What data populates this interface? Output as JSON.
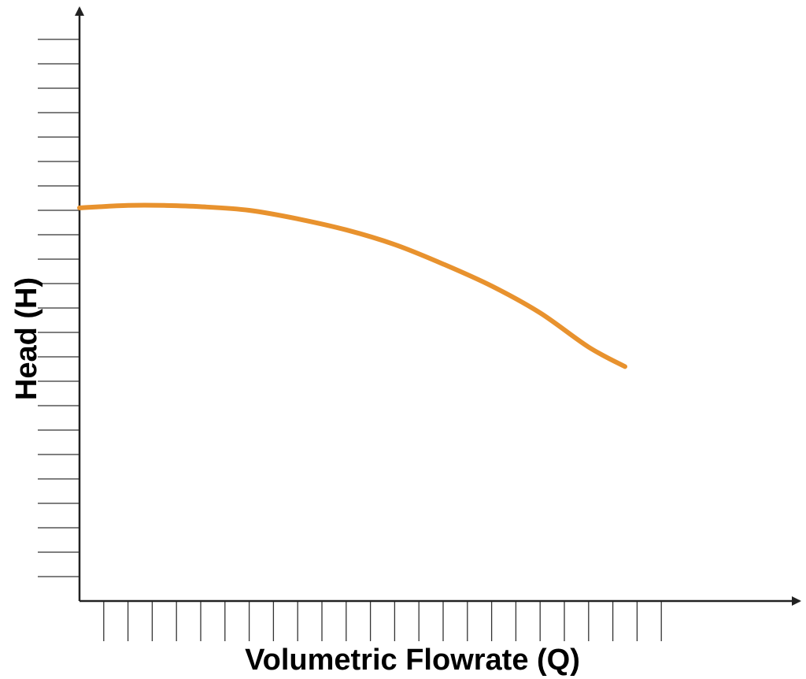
{
  "chart_data": {
    "type": "line",
    "title": "",
    "xlabel": "Volumetric Flowrate (Q)",
    "ylabel": "Head (H)",
    "xlim": [
      0,
      29
    ],
    "ylim": [
      0,
      23
    ],
    "x_tick_count": 24,
    "y_tick_count": 23,
    "grid": false,
    "legend": "none",
    "series": [
      {
        "color": "#e8922e",
        "x": [
          0,
          2,
          3.5,
          5,
          7,
          9,
          11,
          13,
          15,
          17,
          19,
          21,
          22.5
        ],
        "y": [
          16.1,
          16.2,
          16.2,
          16.15,
          16.0,
          15.65,
          15.2,
          14.6,
          13.8,
          12.9,
          11.8,
          10.4,
          9.6
        ]
      }
    ]
  }
}
